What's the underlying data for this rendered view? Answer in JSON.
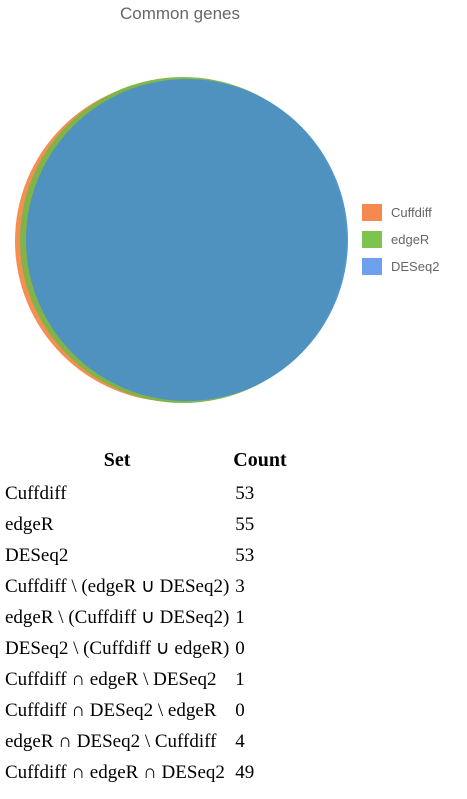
{
  "title": "Common genes",
  "colors": {
    "Cuffdiff": "#f4884a",
    "edgeR": "#7ab648",
    "DESeq2": "#4c8fc6",
    "DESeq2_legend": "#6fa1e8"
  },
  "legend": [
    {
      "label": "Cuffdiff",
      "color": "#f5894f"
    },
    {
      "label": "edgeR",
      "color": "#7cc44d"
    },
    {
      "label": "DESeq2",
      "color": "#6ea0ee"
    }
  ],
  "table": {
    "headers": [
      "Set",
      "Count"
    ],
    "rows": [
      {
        "set": "Cuffdiff",
        "count": "53"
      },
      {
        "set": "edgeR",
        "count": "55"
      },
      {
        "set": "DESeq2",
        "count": "53"
      },
      {
        "set": "Cuffdiff \\ (edgeR ∪ DESeq2)",
        "count": "3"
      },
      {
        "set": "edgeR \\ (Cuffdiff ∪ DESeq2)",
        "count": "1"
      },
      {
        "set": "DESeq2 \\ (Cuffdiff ∪ edgeR)",
        "count": "0"
      },
      {
        "set": "Cuffdiff ∩ edgeR \\ DESeq2",
        "count": "1"
      },
      {
        "set": "Cuffdiff ∩ DESeq2 \\ edgeR",
        "count": "0"
      },
      {
        "set": "edgeR ∩ DESeq2 \\ Cuffdiff",
        "count": "4"
      },
      {
        "set": "Cuffdiff ∩ edgeR ∩ DESeq2",
        "count": "49"
      }
    ]
  }
}
